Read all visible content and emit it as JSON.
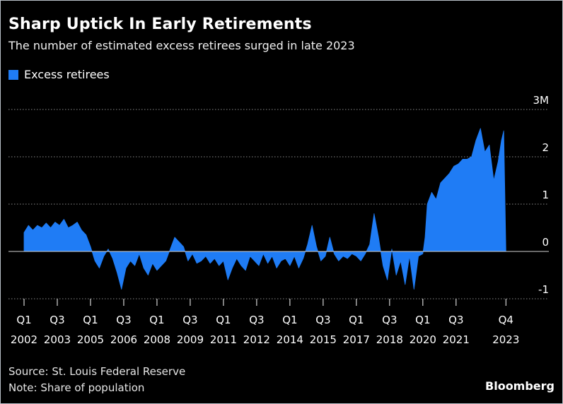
{
  "header": {
    "title": "Sharp Uptick In Early Retirements",
    "subtitle": "The number of estimated excess retirees surged in late 2023"
  },
  "footer": {
    "source": "Source: St. Louis Federal Reserve",
    "note": "Note: Share of population",
    "brand": "Bloomberg"
  },
  "colors": {
    "series": "#1f7cf5",
    "background": "#000000",
    "text": "#ffffff",
    "grid": "#8a8a8a"
  },
  "chart_data": {
    "type": "area",
    "title": "Sharp Uptick In Early Retirements",
    "subtitle": "The number of estimated excess retirees surged in late 2023",
    "xlabel": "",
    "ylabel": "",
    "ylim": [
      -1,
      3
    ],
    "xlim": [
      2002.0,
      2023.9
    ],
    "grid": "horizontal-dotted",
    "legend_position": "top-left",
    "y_ticks": [
      {
        "value": 3,
        "label": "3M"
      },
      {
        "value": 2,
        "label": "2"
      },
      {
        "value": 1,
        "label": "1"
      },
      {
        "value": 0,
        "label": "0"
      },
      {
        "value": -1,
        "label": "-1"
      }
    ],
    "x_ticks": [
      {
        "t": 2002.0,
        "q": "Q1",
        "y": "2002"
      },
      {
        "t": 2003.5,
        "q": "Q3",
        "y": "2003"
      },
      {
        "t": 2005.0,
        "q": "Q1",
        "y": "2005"
      },
      {
        "t": 2006.5,
        "q": "Q3",
        "y": "2006"
      },
      {
        "t": 2008.0,
        "q": "Q1",
        "y": "2008"
      },
      {
        "t": 2009.5,
        "q": "Q3",
        "y": "2009"
      },
      {
        "t": 2011.0,
        "q": "Q1",
        "y": "2011"
      },
      {
        "t": 2012.5,
        "q": "Q3",
        "y": "2012"
      },
      {
        "t": 2014.0,
        "q": "Q1",
        "y": "2014"
      },
      {
        "t": 2015.5,
        "q": "Q3",
        "y": "2015"
      },
      {
        "t": 2017.0,
        "q": "Q1",
        "y": "2017"
      },
      {
        "t": 2018.5,
        "q": "Q3",
        "y": "2018"
      },
      {
        "t": 2020.0,
        "q": "Q1",
        "y": "2020"
      },
      {
        "t": 2021.5,
        "q": "Q3",
        "y": "2021"
      },
      {
        "t": 2023.75,
        "q": "Q4",
        "y": "2023"
      }
    ],
    "series": [
      {
        "name": "Excess retirees",
        "x": [
          2002.0,
          2002.2,
          2002.4,
          2002.6,
          2002.8,
          2003.0,
          2003.2,
          2003.4,
          2003.6,
          2003.8,
          2004.0,
          2004.2,
          2004.4,
          2004.6,
          2004.8,
          2005.0,
          2005.2,
          2005.4,
          2005.6,
          2005.8,
          2006.0,
          2006.2,
          2006.4,
          2006.6,
          2006.8,
          2007.0,
          2007.2,
          2007.4,
          2007.6,
          2007.8,
          2008.0,
          2008.2,
          2008.4,
          2008.6,
          2008.8,
          2009.0,
          2009.2,
          2009.4,
          2009.6,
          2009.8,
          2010.0,
          2010.2,
          2010.4,
          2010.6,
          2010.8,
          2011.0,
          2011.2,
          2011.4,
          2011.6,
          2011.8,
          2012.0,
          2012.2,
          2012.4,
          2012.6,
          2012.8,
          2013.0,
          2013.2,
          2013.4,
          2013.6,
          2013.8,
          2014.0,
          2014.2,
          2014.4,
          2014.6,
          2014.8,
          2015.0,
          2015.2,
          2015.4,
          2015.6,
          2015.8,
          2016.0,
          2016.2,
          2016.4,
          2016.6,
          2016.8,
          2017.0,
          2017.2,
          2017.4,
          2017.6,
          2017.8,
          2018.0,
          2018.2,
          2018.4,
          2018.6,
          2018.8,
          2019.0,
          2019.2,
          2019.4,
          2019.6,
          2019.8,
          2020.0,
          2020.1,
          2020.2,
          2020.4,
          2020.6,
          2020.8,
          2021.0,
          2021.2,
          2021.4,
          2021.6,
          2021.8,
          2022.0,
          2022.2,
          2022.4,
          2022.6,
          2022.8,
          2023.0,
          2023.2,
          2023.4,
          2023.55,
          2023.65,
          2023.75
        ],
        "values": [
          0.4,
          0.55,
          0.45,
          0.55,
          0.5,
          0.6,
          0.5,
          0.62,
          0.55,
          0.68,
          0.5,
          0.55,
          0.62,
          0.45,
          0.35,
          0.1,
          -0.2,
          -0.35,
          -0.1,
          0.05,
          -0.15,
          -0.45,
          -0.8,
          -0.35,
          -0.2,
          -0.3,
          -0.05,
          -0.35,
          -0.5,
          -0.25,
          -0.4,
          -0.3,
          -0.2,
          0.05,
          0.3,
          0.2,
          0.1,
          -0.2,
          -0.05,
          -0.25,
          -0.2,
          -0.1,
          -0.25,
          -0.15,
          -0.3,
          -0.2,
          -0.6,
          -0.35,
          -0.15,
          -0.3,
          -0.4,
          -0.1,
          -0.2,
          -0.3,
          -0.05,
          -0.25,
          -0.1,
          -0.35,
          -0.2,
          -0.15,
          -0.3,
          -0.1,
          -0.35,
          -0.15,
          0.15,
          0.55,
          0.1,
          -0.2,
          -0.1,
          0.3,
          -0.05,
          -0.2,
          -0.1,
          -0.15,
          -0.05,
          -0.1,
          -0.2,
          -0.05,
          0.15,
          0.8,
          0.3,
          -0.3,
          -0.6,
          0.05,
          -0.5,
          -0.2,
          -0.7,
          -0.1,
          -0.8,
          -0.1,
          -0.05,
          0.3,
          1.0,
          1.25,
          1.1,
          1.45,
          1.55,
          1.65,
          1.8,
          1.85,
          1.95,
          1.95,
          2.0,
          2.35,
          2.6,
          2.1,
          2.25,
          1.5,
          1.9,
          2.35,
          2.55,
          0.0
        ]
      }
    ]
  }
}
